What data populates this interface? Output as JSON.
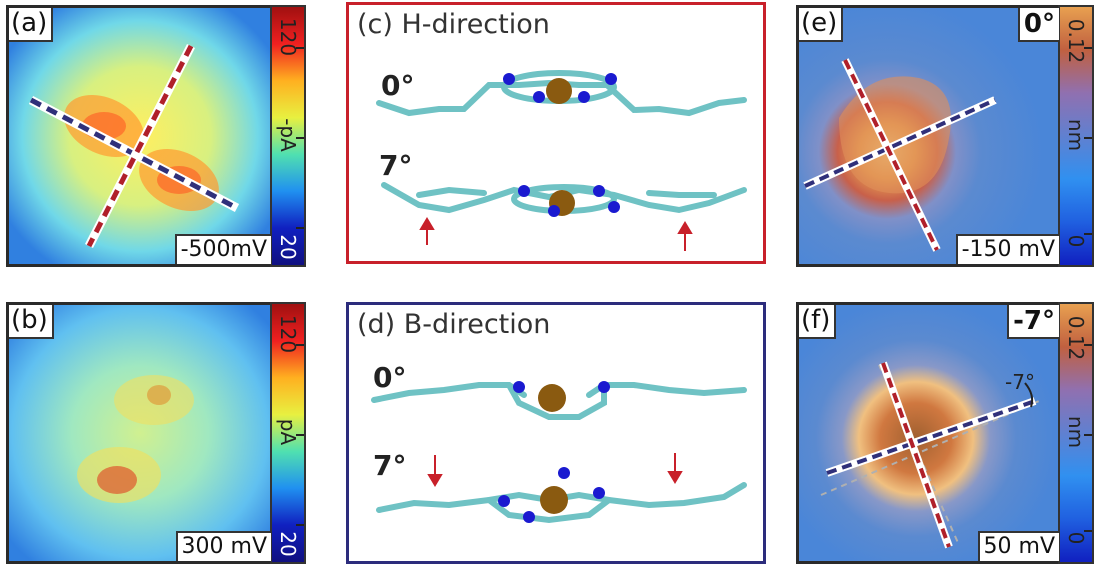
{
  "panel_a": {
    "label": "(a)",
    "bias": "-500mV",
    "cbar_max": "120",
    "cbar_unit": "-pA",
    "cbar_min": "20"
  },
  "panel_b": {
    "label": "(b)",
    "bias": "300 mV",
    "cbar_max": "120",
    "cbar_unit": "pA",
    "cbar_min": "20"
  },
  "panel_c": {
    "label": "(c) H-direction",
    "angle_top": "0°",
    "angle_bottom": "7°"
  },
  "panel_d": {
    "label": "(d) B-direction",
    "angle_top": "0°",
    "angle_bottom": "7°"
  },
  "panel_e": {
    "label": "(e)",
    "angle": "0°",
    "bias": "-150 mV",
    "cbar_max": "0.12",
    "cbar_unit": "nm",
    "cbar_min": "0"
  },
  "panel_f": {
    "label": "(f)",
    "angle": "-7°",
    "bias": "50 mV",
    "cbar_max": "0.12",
    "cbar_unit": "nm",
    "cbar_min": "0",
    "annotation": "-7°"
  },
  "colors": {
    "red_dash": "#b0202a",
    "blue_dash": "#30307a",
    "frame_red": "#c8202a",
    "frame_blue": "#2c2c7c",
    "atom_c": "#6fc2c4",
    "atom_n": "#1a1ad0",
    "atom_fe": "#8a5a10"
  }
}
